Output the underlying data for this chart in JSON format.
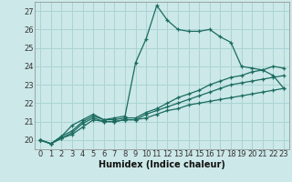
{
  "xlabel": "Humidex (Indice chaleur)",
  "bg_color": "#cce8e8",
  "grid_color": "#aad4d4",
  "line_color": "#1a6b60",
  "xlim": [
    -0.5,
    23.5
  ],
  "ylim": [
    19.5,
    27.5
  ],
  "xticks": [
    0,
    1,
    2,
    3,
    4,
    5,
    6,
    7,
    8,
    9,
    10,
    11,
    12,
    13,
    14,
    15,
    16,
    17,
    18,
    19,
    20,
    21,
    22,
    23
  ],
  "yticks": [
    20,
    21,
    22,
    23,
    24,
    25,
    26,
    27
  ],
  "lines": [
    {
      "x": [
        0,
        1,
        2,
        3,
        4,
        5,
        6,
        7,
        8,
        9,
        10,
        11,
        12,
        13,
        14,
        15,
        16,
        17,
        18,
        19,
        20,
        21,
        22,
        23
      ],
      "y": [
        20.0,
        19.8,
        20.2,
        20.8,
        21.1,
        21.4,
        21.1,
        21.2,
        21.3,
        24.2,
        25.5,
        27.3,
        26.5,
        26.0,
        25.9,
        25.9,
        26.0,
        25.6,
        25.3,
        24.0,
        23.9,
        23.8,
        23.5,
        22.8
      ]
    },
    {
      "x": [
        0,
        1,
        2,
        3,
        4,
        5,
        6,
        7,
        8,
        9,
        10,
        11,
        12,
        13,
        14,
        15,
        16,
        17,
        18,
        19,
        20,
        21,
        22,
        23
      ],
      "y": [
        20.0,
        19.8,
        20.2,
        20.5,
        21.0,
        21.3,
        21.1,
        21.1,
        21.2,
        21.2,
        21.5,
        21.7,
        22.0,
        22.3,
        22.5,
        22.7,
        23.0,
        23.2,
        23.4,
        23.5,
        23.7,
        23.8,
        24.0,
        23.9
      ]
    },
    {
      "x": [
        0,
        1,
        2,
        3,
        4,
        5,
        6,
        7,
        8,
        9,
        10,
        11,
        12,
        13,
        14,
        15,
        16,
        17,
        18,
        19,
        20,
        21,
        22,
        23
      ],
      "y": [
        20.0,
        19.8,
        20.1,
        20.4,
        20.9,
        21.2,
        21.0,
        21.0,
        21.1,
        21.1,
        21.4,
        21.6,
        21.8,
        22.0,
        22.2,
        22.4,
        22.6,
        22.8,
        23.0,
        23.1,
        23.2,
        23.3,
        23.4,
        23.5
      ]
    },
    {
      "x": [
        0,
        1,
        2,
        3,
        4,
        5,
        6,
        7,
        8,
        9,
        10,
        11,
        12,
        13,
        14,
        15,
        16,
        17,
        18,
        19,
        20,
        21,
        22,
        23
      ],
      "y": [
        20.0,
        19.8,
        20.1,
        20.3,
        20.7,
        21.1,
        21.0,
        21.0,
        21.1,
        21.1,
        21.2,
        21.4,
        21.6,
        21.7,
        21.9,
        22.0,
        22.1,
        22.2,
        22.3,
        22.4,
        22.5,
        22.6,
        22.7,
        22.8
      ]
    }
  ],
  "marker": "+",
  "marker_size": 3.5,
  "marker_edge_width": 0.9,
  "line_width": 0.9,
  "font_size": 6,
  "xlabel_fontsize": 7,
  "tick_label_color": "#333333"
}
